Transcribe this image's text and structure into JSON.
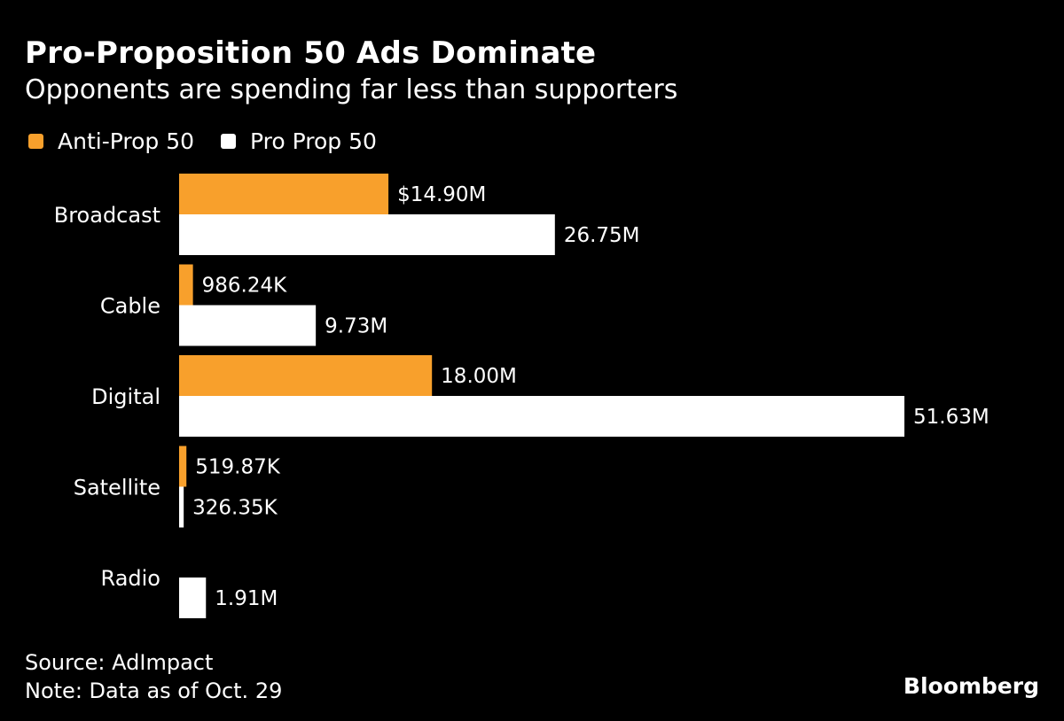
{
  "chart_data": {
    "type": "bar",
    "orientation": "horizontal",
    "title": "Pro-Proposition 50 Ads Dominate",
    "subtitle": "Opponents are spending far less than supporters",
    "categories": [
      "Broadcast",
      "Cable",
      "Digital",
      "Satellite",
      "Radio"
    ],
    "unit": "USD millions",
    "series": [
      {
        "name": "Anti-Prop 50",
        "color": "#F8A02C",
        "values": [
          14.9,
          0.98624,
          18.0,
          0.51987,
          null
        ],
        "labels": [
          "$14.90M",
          "986.24K",
          "18.00M",
          "519.87K",
          null
        ]
      },
      {
        "name": "Pro Prop 50",
        "color": "#FFFFFF",
        "values": [
          26.75,
          9.73,
          51.63,
          0.32635,
          1.91
        ],
        "labels": [
          "26.75M",
          "9.73M",
          "51.63M",
          "326.35K",
          "1.91M"
        ]
      }
    ],
    "xlim": [
      0,
      51.63
    ],
    "grid": false,
    "legend_placement": "top-left"
  },
  "footer": {
    "source": "Source: AdImpact",
    "note": "Note: Data as of Oct. 29",
    "brand": "Bloomberg"
  }
}
